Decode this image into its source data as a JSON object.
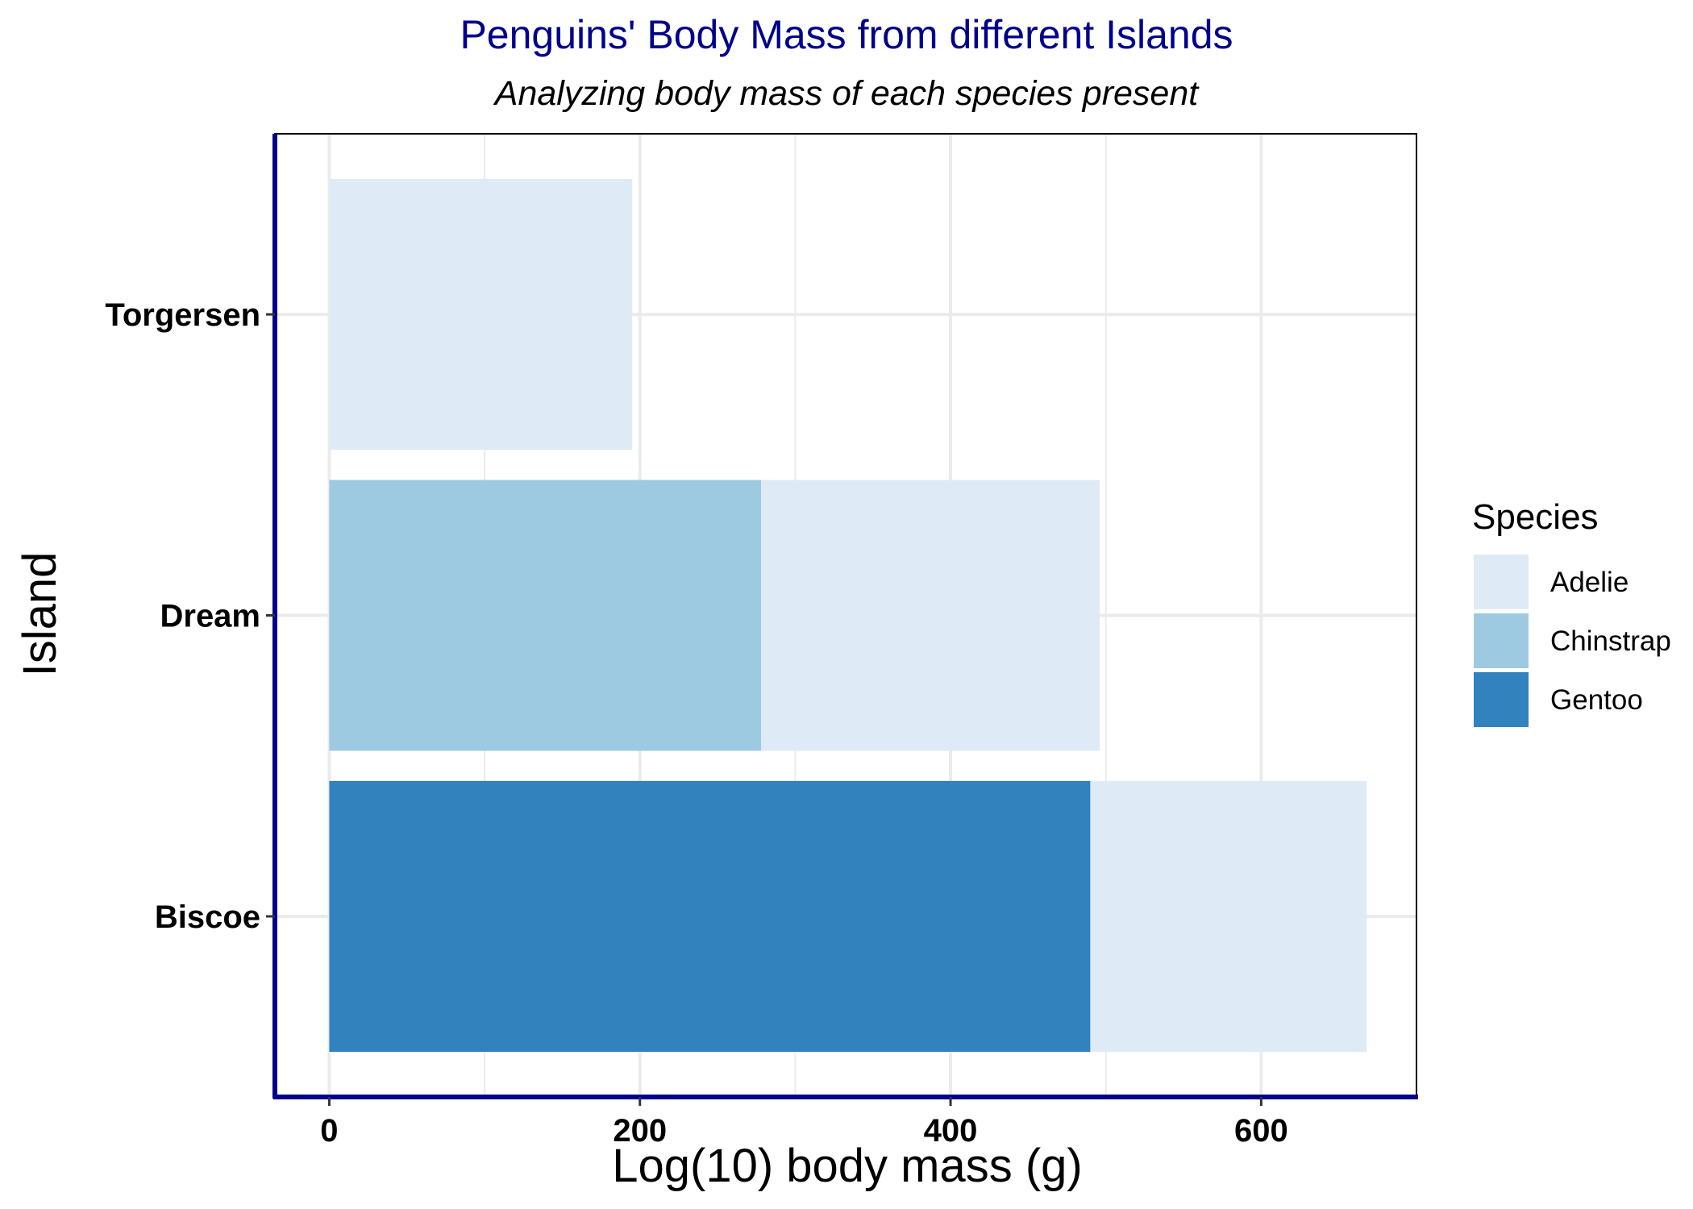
{
  "chart_data": {
    "type": "bar",
    "orientation": "horizontal",
    "stacked": true,
    "title": "Penguins' Body Mass from different Islands",
    "subtitle": "Analyzing body mass of each species present",
    "xlabel": "Log(10) body mass (g)",
    "ylabel": "Island",
    "xlim": [
      -35,
      700
    ],
    "x_ticks": [
      "0",
      "200",
      "400",
      "600"
    ],
    "x_tick_values": [
      0,
      200,
      400,
      600
    ],
    "categories": [
      "Biscoe",
      "Dream",
      "Torgersen"
    ],
    "series": [
      {
        "name": "Gentoo",
        "color": "#3182BD",
        "values": [
          490,
          0,
          0
        ]
      },
      {
        "name": "Chinstrap",
        "color": "#9ECAE1",
        "values": [
          0,
          278,
          0
        ]
      },
      {
        "name": "Adelie",
        "color": "#DEEBF7",
        "values": [
          178,
          218,
          195
        ]
      }
    ],
    "legend": {
      "title": "Species",
      "position": "right",
      "items": [
        "Adelie",
        "Chinstrap",
        "Gentoo"
      ]
    },
    "grid": true,
    "axis_line_color": "#00008B"
  }
}
